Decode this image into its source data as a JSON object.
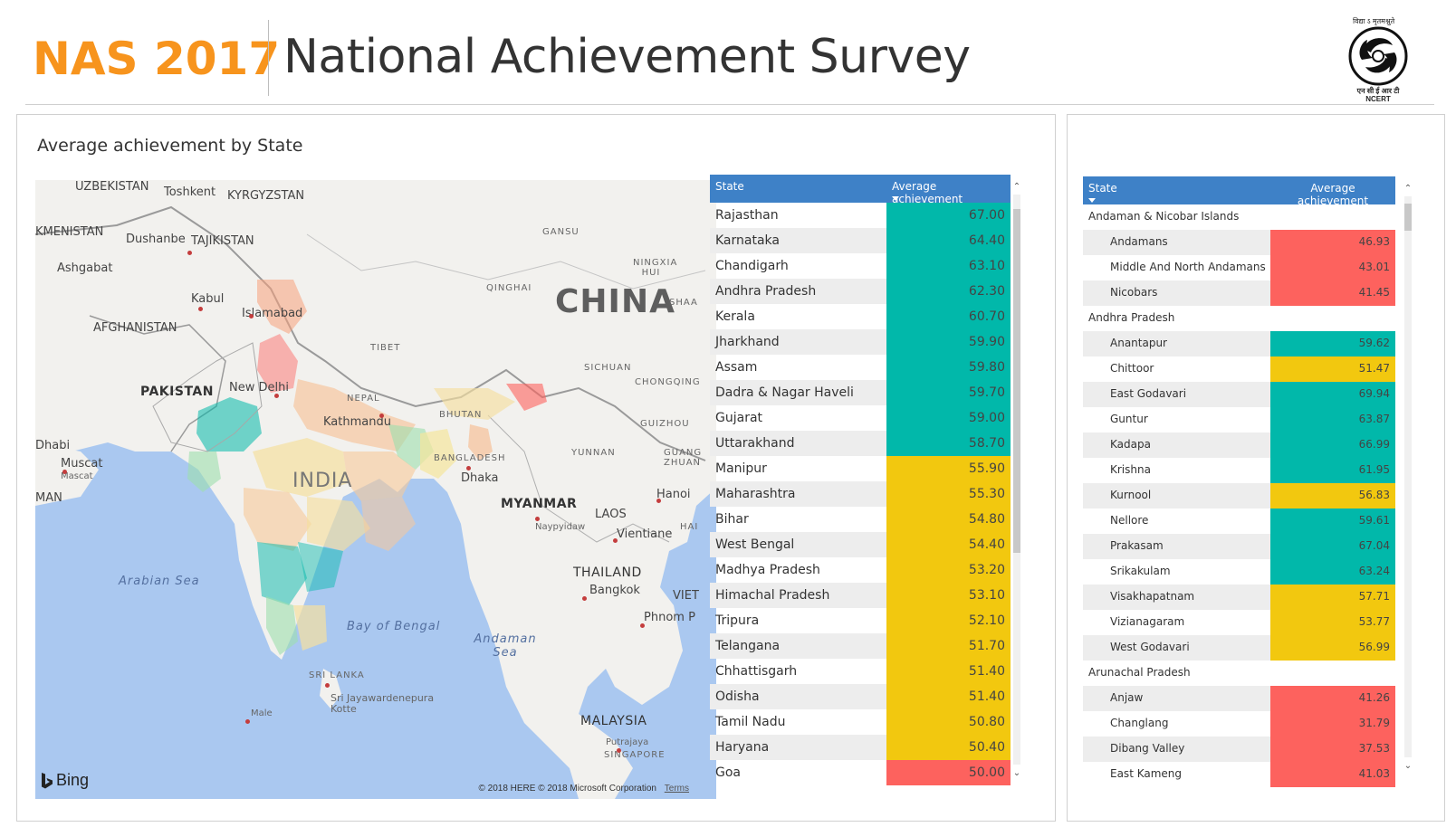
{
  "header": {
    "brand": "NAS 2017",
    "title": "National Achievement Survey",
    "logo_top_text": "विद्या ऽ मृतमश्नुते",
    "logo_bottom_text_hi": "एन सी ई आर टी",
    "logo_bottom_text_en": "NCERT"
  },
  "main_card": {
    "title": "Average achievement by State"
  },
  "map": {
    "labels": {
      "china": "CHINA",
      "india": "INDIA",
      "pakistan": "PAKISTAN",
      "afghanistan": "AFGHANISTAN",
      "tajikistan": "TAJIKISTAN",
      "kyrgyzstan": "KYRGYZSTAN",
      "uzbekistan": "UZBEKISTAN",
      "turkmenistan": "KMENISTAN",
      "nepal": "NEPAL",
      "bhutan": "BHUTAN",
      "bangladesh": "BANGLADESH",
      "myanmar": "MYANMAR",
      "laos": "LAOS",
      "thailand": "THAILAND",
      "sri_lanka": "SRI LANKA",
      "malaysia": "MALAYSIA",
      "singapore": "SINGAPORE",
      "oman": "MAN",
      "abudhabi": "Dhabi",
      "arabian_sea": "Arabian Sea",
      "bay_of_bengal": "Bay of Bengal",
      "andaman_sea": "Andaman Sea",
      "tibet": "TIBET",
      "qinghai": "QINGHAI",
      "gansu": "GANSU",
      "sichuan": "SICHUAN",
      "yunnan": "YUNNAN",
      "guizhou": "GUIZHOU",
      "chongqing": "CHONGQING",
      "ningxia": "NINGXIA HUI",
      "guangxi": "GUANG ZHUAN",
      "toshkent": "Toshkent",
      "dushanbe": "Dushanbe",
      "ashgabat": "Ashgabat",
      "kabul": "Kabul",
      "islamabad": "Islamabad",
      "new_delhi": "New Delhi",
      "kathmandu": "Kathmandu",
      "dhaka": "Dhaka",
      "muscat": "Muscat",
      "muscat2": "Mascat",
      "naypyidaw": "Naypyidaw",
      "hanoi": "Hanoi",
      "vientiane": "Vientiane",
      "bangkok": "Bangkok",
      "phnom": "Phnom P",
      "viet": "VIET",
      "hai": "HAI",
      "shaa": "SHAA",
      "sri_jaya": "Sri Jayawardenepura",
      "kotte": "Kotte",
      "male": "Male",
      "putrajaya": "Putrajaya"
    },
    "bing": "Bing",
    "copyright": "© 2018 HERE © 2018 Microsoft Corporation",
    "terms": "Terms"
  },
  "colors": {
    "high": "#01b8aa",
    "mid": "#f2c80f",
    "low": "#fd625e",
    "header": "#3e81c7",
    "brand": "#f7941d"
  },
  "state_table": {
    "columns": [
      "State",
      "Average achievement"
    ],
    "rows": [
      {
        "state": "Rajasthan",
        "value": "67.00",
        "band": "high"
      },
      {
        "state": "Karnataka",
        "value": "64.40",
        "band": "high"
      },
      {
        "state": "Chandigarh",
        "value": "63.10",
        "band": "high"
      },
      {
        "state": "Andhra Pradesh",
        "value": "62.30",
        "band": "high"
      },
      {
        "state": "Kerala",
        "value": "60.70",
        "band": "high"
      },
      {
        "state": "Jharkhand",
        "value": "59.90",
        "band": "high"
      },
      {
        "state": "Assam",
        "value": "59.80",
        "band": "high"
      },
      {
        "state": "Dadra & Nagar Haveli",
        "value": "59.70",
        "band": "high"
      },
      {
        "state": "Gujarat",
        "value": "59.00",
        "band": "high"
      },
      {
        "state": "Uttarakhand",
        "value": "58.70",
        "band": "high"
      },
      {
        "state": "Manipur",
        "value": "55.90",
        "band": "mid"
      },
      {
        "state": "Maharashtra",
        "value": "55.30",
        "band": "mid"
      },
      {
        "state": "Bihar",
        "value": "54.80",
        "band": "mid"
      },
      {
        "state": "West Bengal",
        "value": "54.40",
        "band": "mid"
      },
      {
        "state": "Madhya Pradesh",
        "value": "53.20",
        "band": "mid"
      },
      {
        "state": "Himachal Pradesh",
        "value": "53.10",
        "band": "mid"
      },
      {
        "state": "Tripura",
        "value": "52.10",
        "band": "mid"
      },
      {
        "state": "Telangana",
        "value": "51.70",
        "band": "mid"
      },
      {
        "state": "Chhattisgarh",
        "value": "51.40",
        "band": "mid"
      },
      {
        "state": "Odisha",
        "value": "51.40",
        "band": "mid"
      },
      {
        "state": "Tamil Nadu",
        "value": "50.80",
        "band": "mid"
      },
      {
        "state": "Haryana",
        "value": "50.40",
        "band": "mid"
      },
      {
        "state": "Goa",
        "value": "50.00",
        "band": "low"
      }
    ]
  },
  "district_table": {
    "columns": [
      "State",
      "Average achievement"
    ],
    "rows": [
      {
        "type": "group",
        "label": "Andaman & Nicobar Islands"
      },
      {
        "type": "child",
        "label": "Andamans",
        "value": "46.93",
        "band": "low"
      },
      {
        "type": "child",
        "label": "Middle And North Andamans",
        "value": "43.01",
        "band": "low"
      },
      {
        "type": "child",
        "label": "Nicobars",
        "value": "41.45",
        "band": "low"
      },
      {
        "type": "group",
        "label": "Andhra Pradesh"
      },
      {
        "type": "child",
        "label": "Anantapur",
        "value": "59.62",
        "band": "high"
      },
      {
        "type": "child",
        "label": "Chittoor",
        "value": "51.47",
        "band": "mid"
      },
      {
        "type": "child",
        "label": "East Godavari",
        "value": "69.94",
        "band": "high"
      },
      {
        "type": "child",
        "label": "Guntur",
        "value": "63.87",
        "band": "high"
      },
      {
        "type": "child",
        "label": "Kadapa",
        "value": "66.99",
        "band": "high"
      },
      {
        "type": "child",
        "label": "Krishna",
        "value": "61.95",
        "band": "high"
      },
      {
        "type": "child",
        "label": "Kurnool",
        "value": "56.83",
        "band": "mid"
      },
      {
        "type": "child",
        "label": "Nellore",
        "value": "59.61",
        "band": "high"
      },
      {
        "type": "child",
        "label": "Prakasam",
        "value": "67.04",
        "band": "high"
      },
      {
        "type": "child",
        "label": "Srikakulam",
        "value": "63.24",
        "band": "high"
      },
      {
        "type": "child",
        "label": "Visakhapatnam",
        "value": "57.71",
        "band": "mid"
      },
      {
        "type": "child",
        "label": "Vizianagaram",
        "value": "53.77",
        "band": "mid"
      },
      {
        "type": "child",
        "label": "West Godavari",
        "value": "56.99",
        "band": "mid"
      },
      {
        "type": "group",
        "label": "Arunachal Pradesh"
      },
      {
        "type": "child",
        "label": "Anjaw",
        "value": "41.26",
        "band": "low"
      },
      {
        "type": "child",
        "label": "Changlang",
        "value": "31.79",
        "band": "low"
      },
      {
        "type": "child",
        "label": "Dibang Valley",
        "value": "37.53",
        "band": "low"
      },
      {
        "type": "child",
        "label": "East Kameng",
        "value": "41.03",
        "band": "low"
      }
    ]
  }
}
